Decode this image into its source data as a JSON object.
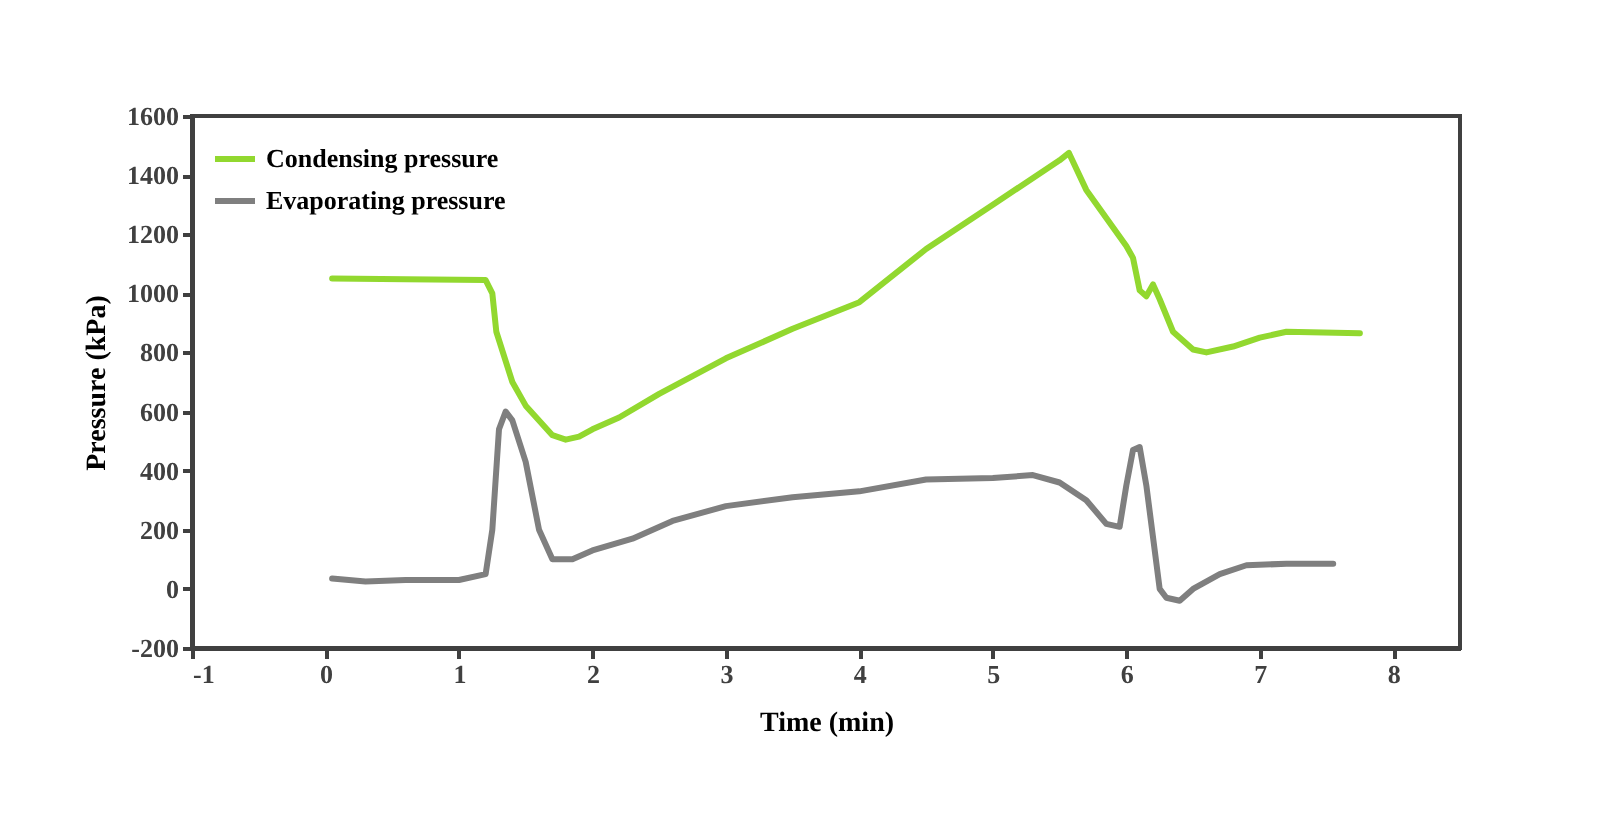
{
  "chart_data": {
    "type": "line",
    "xlabel": "Time (min)",
    "ylabel": "Pressure (kPa)",
    "xlim": [
      -1,
      8.5
    ],
    "xticks": [
      -1,
      0,
      1,
      2,
      3,
      4,
      5,
      6,
      7,
      8
    ],
    "ylim": [
      -200,
      1600
    ],
    "yticks": [
      -200,
      0,
      200,
      400,
      600,
      800,
      1000,
      1200,
      1400,
      1600
    ],
    "grid": false,
    "legend": "top left",
    "marker": "none",
    "line_style": "solid",
    "series": [
      {
        "name": "Condensing pressure",
        "color": "#92d82f",
        "x": [
          0.05,
          0.6,
          1.2,
          1.25,
          1.28,
          1.4,
          1.5,
          1.7,
          1.8,
          1.9,
          2.0,
          2.2,
          2.5,
          3.0,
          3.5,
          4.0,
          4.5,
          5.0,
          5.5,
          5.57,
          5.7,
          6.0,
          6.05,
          6.1,
          6.15,
          6.2,
          6.25,
          6.35,
          6.5,
          6.6,
          6.8,
          7.0,
          7.2,
          7.75
        ],
        "values": [
          1050,
          1048,
          1045,
          1000,
          870,
          700,
          620,
          520,
          505,
          515,
          540,
          580,
          660,
          780,
          880,
          970,
          1150,
          1300,
          1450,
          1475,
          1350,
          1160,
          1120,
          1010,
          990,
          1030,
          980,
          870,
          810,
          800,
          820,
          850,
          870,
          865
        ]
      },
      {
        "name": "Evaporating pressure",
        "color": "#7f7f7f",
        "x": [
          0.05,
          0.3,
          0.6,
          1.0,
          1.2,
          1.25,
          1.3,
          1.35,
          1.4,
          1.5,
          1.6,
          1.7,
          1.85,
          2.0,
          2.3,
          2.6,
          3.0,
          3.5,
          4.0,
          4.5,
          5.0,
          5.3,
          5.5,
          5.7,
          5.85,
          5.95,
          6.0,
          6.05,
          6.1,
          6.15,
          6.25,
          6.3,
          6.4,
          6.5,
          6.7,
          6.9,
          7.2,
          7.55
        ],
        "values": [
          35,
          25,
          30,
          30,
          50,
          200,
          540,
          600,
          570,
          430,
          200,
          100,
          100,
          130,
          170,
          230,
          280,
          310,
          330,
          370,
          375,
          385,
          360,
          300,
          220,
          210,
          350,
          470,
          480,
          350,
          0,
          -30,
          -40,
          0,
          50,
          80,
          85,
          85
        ]
      }
    ]
  }
}
